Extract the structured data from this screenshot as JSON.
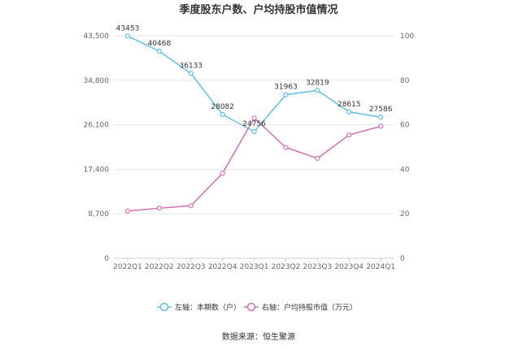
{
  "chart_data": {
    "type": "line",
    "title": "季度股东户数、户均持股市值情况",
    "categories": [
      "2022Q1",
      "2022Q2",
      "2022Q3",
      "2022Q4",
      "2023Q1",
      "2023Q2",
      "2023Q3",
      "2023Q4",
      "2024Q1"
    ],
    "left_axis": {
      "min": 0,
      "max": 43500,
      "ticks": [
        "0",
        "8,700",
        "17,400",
        "26,100",
        "34,800",
        "43,500"
      ]
    },
    "right_axis": {
      "min": 0,
      "max": 100,
      "ticks": [
        "0",
        "20",
        "40",
        "60",
        "80",
        "100"
      ]
    },
    "series": [
      {
        "name": "左轴：本期数（户）",
        "axis": "left",
        "color": "#5bc0eb",
        "values": [
          43453,
          40468,
          36133,
          28082,
          24756,
          31963,
          32819,
          28615,
          27586
        ],
        "labels": [
          "43453",
          "40468",
          "36133",
          "28082",
          "24756",
          "31963",
          "32819",
          "28615",
          "27586"
        ]
      },
      {
        "name": "右轴：户均持股市值（万元）",
        "axis": "right",
        "color": "#d26fb4",
        "values": [
          21.2,
          22.5,
          23.6,
          38.2,
          63.0,
          49.8,
          44.9,
          55.4,
          59.3
        ]
      }
    ],
    "grid": true,
    "legend_position": "bottom-center"
  },
  "source": "数据来源：恒生聚源"
}
